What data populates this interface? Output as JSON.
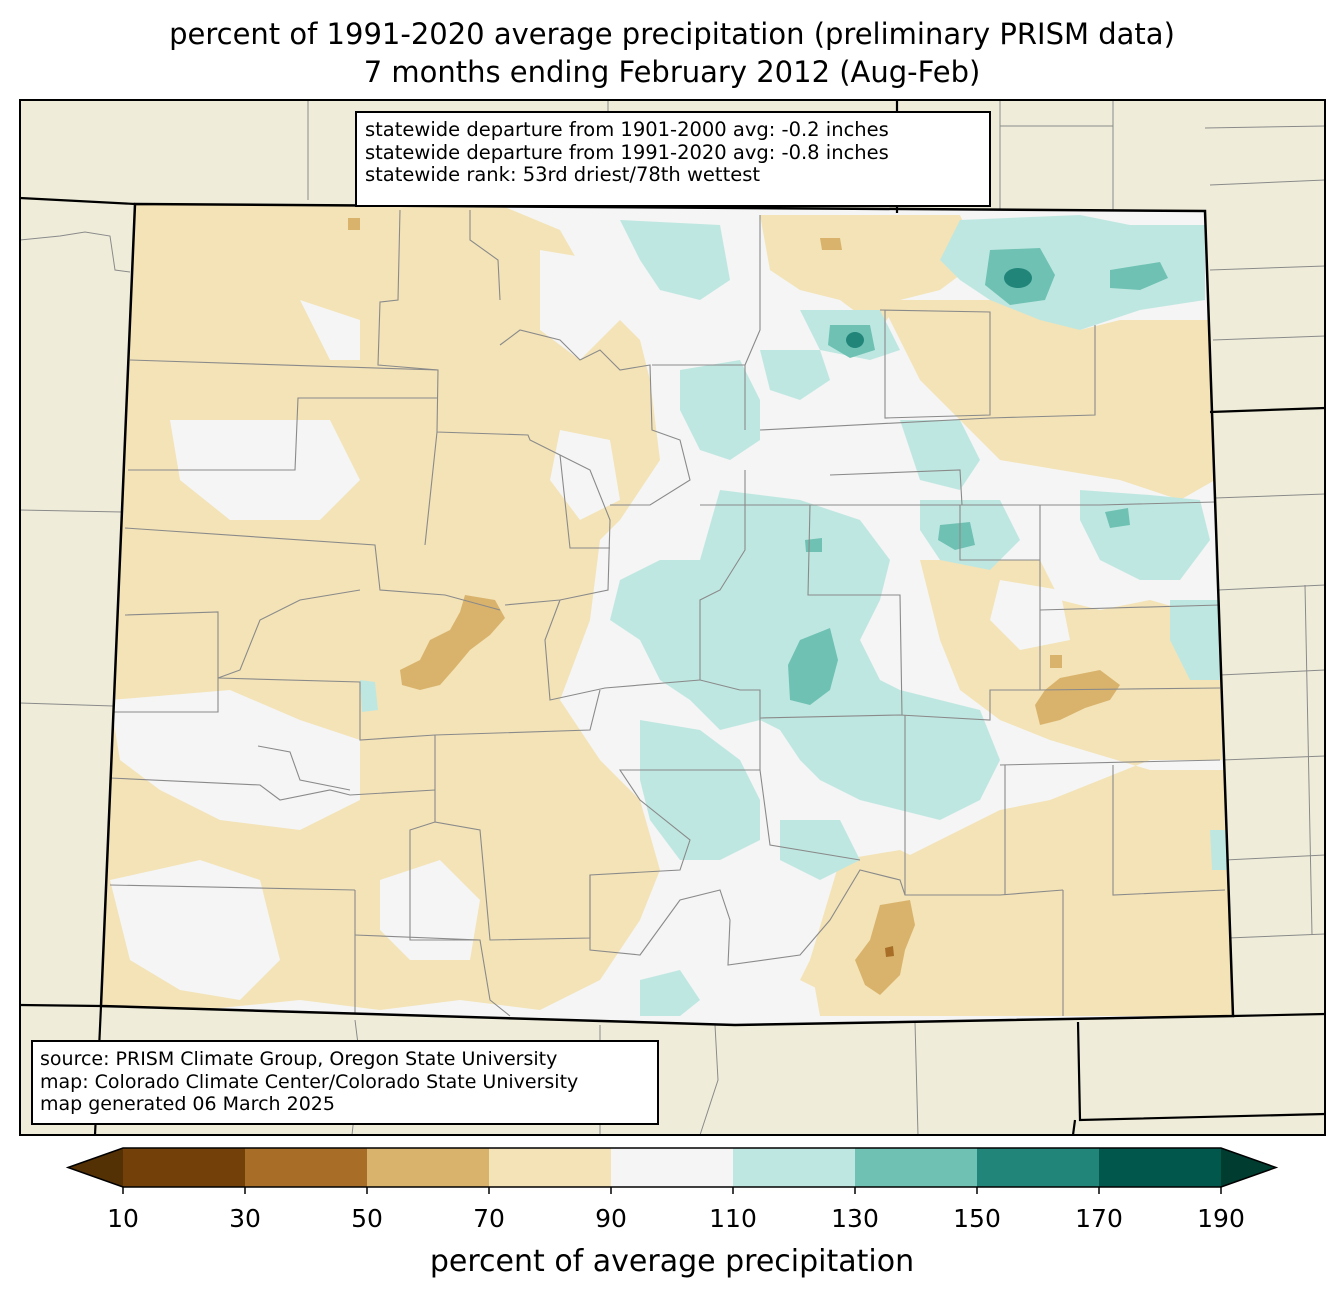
{
  "title": {
    "line1": "percent of 1991-2020 average precipitation (preliminary PRISM data)",
    "line2": "7 months ending February 2012 (Aug-Feb)"
  },
  "stats": {
    "line1": "statewide departure from 1901-2000 avg: -0.2 inches",
    "line2": "statewide departure from 1991-2020 avg: -0.8 inches",
    "line3": "statewide rank: 53rd driest/78th wettest"
  },
  "source": {
    "line1": "source: PRISM Climate Group, Oregon State University",
    "line2": "map: Colorado Climate Center/Colorado State University",
    "line3": "map generated 06 March 2025"
  },
  "colorbar": {
    "label": "percent of average precipitation",
    "ticks": [
      "10",
      "30",
      "50",
      "70",
      "90",
      "110",
      "130",
      "150",
      "170",
      "190"
    ],
    "bins": [
      {
        "range": "<10",
        "color": "#543005"
      },
      {
        "range": "10-30",
        "color": "#734009"
      },
      {
        "range": "30-50",
        "color": "#a86e28"
      },
      {
        "range": "50-70",
        "color": "#d9b36c"
      },
      {
        "range": "70-90",
        "color": "#f3e3b7"
      },
      {
        "range": "90-110",
        "color": "#f4f5f4"
      },
      {
        "range": "110-130",
        "color": "#bfe7e1"
      },
      {
        "range": "130-150",
        "color": "#6fc2b3"
      },
      {
        "range": "150-170",
        "color": "#22857a"
      },
      {
        "range": "170-190",
        "color": "#01574c"
      },
      {
        "range": ">190",
        "color": "#003c30"
      }
    ]
  },
  "map_colors": {
    "land_outside": "#efedda",
    "state_border": "#000000",
    "county_border": "#8a8a8a"
  }
}
